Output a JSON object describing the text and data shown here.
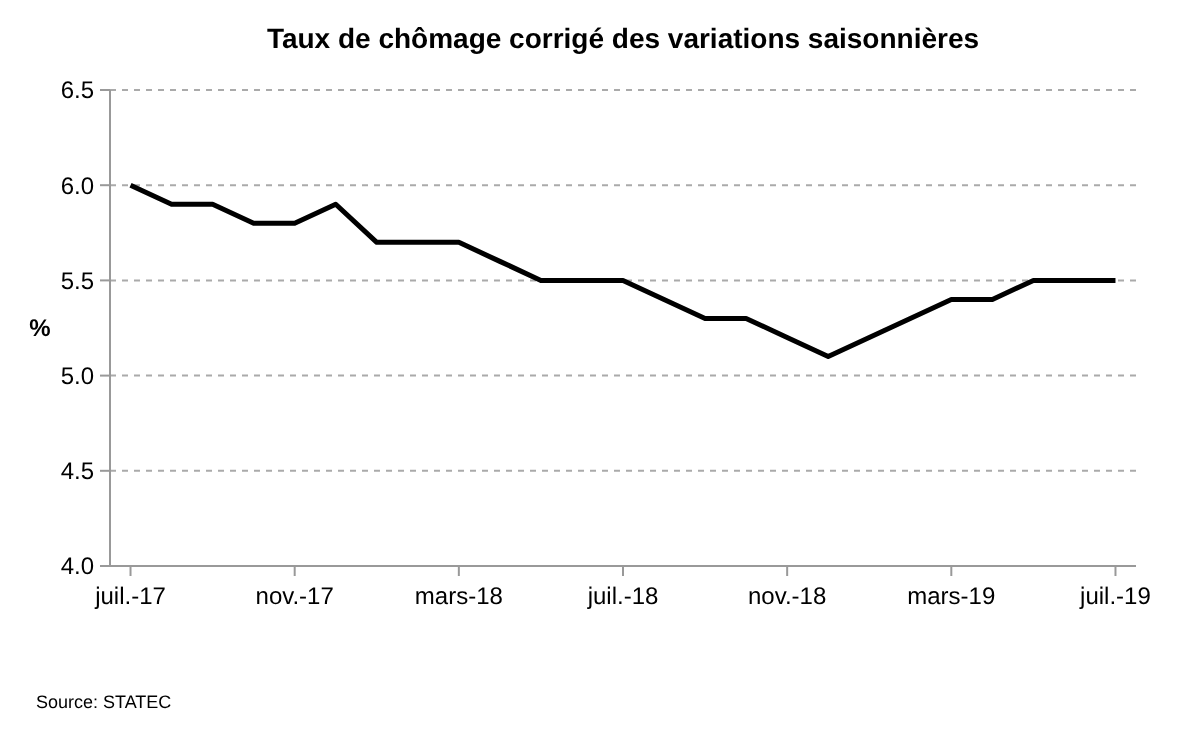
{
  "chart_data": {
    "type": "line",
    "title": "Taux de chômage corrigé des variations saisonnières",
    "ylabel": "%",
    "categories": [
      "juil.-17",
      null,
      null,
      null,
      "nov.-17",
      null,
      null,
      null,
      "mars-18",
      null,
      null,
      null,
      "juil.-18",
      null,
      null,
      null,
      "nov.-18",
      null,
      null,
      null,
      "mars-19",
      null,
      null,
      null,
      "juil.-19"
    ],
    "series": [
      {
        "color": "#000000",
        "values": [
          6.0,
          5.9,
          5.9,
          5.8,
          5.8,
          5.9,
          5.7,
          5.7,
          5.7,
          5.6,
          5.5,
          5.5,
          5.5,
          5.4,
          5.3,
          5.3,
          5.2,
          5.1,
          5.2,
          5.3,
          5.4,
          5.4,
          5.5,
          5.5,
          5.5
        ]
      }
    ],
    "ylim": [
      4.0,
      6.5
    ],
    "yticks": [
      {
        "value": 4.0,
        "label": "4.0"
      },
      {
        "value": 4.5,
        "label": "4.5"
      },
      {
        "value": 5.0,
        "label": "5.0"
      },
      {
        "value": 5.5,
        "label": "5.5"
      },
      {
        "value": 6.0,
        "label": "6.0"
      },
      {
        "value": 6.5,
        "label": "6.5"
      }
    ],
    "grid": "y",
    "marker": "none",
    "line_style": "solid",
    "annotations": [
      "Source: STATEC"
    ]
  }
}
